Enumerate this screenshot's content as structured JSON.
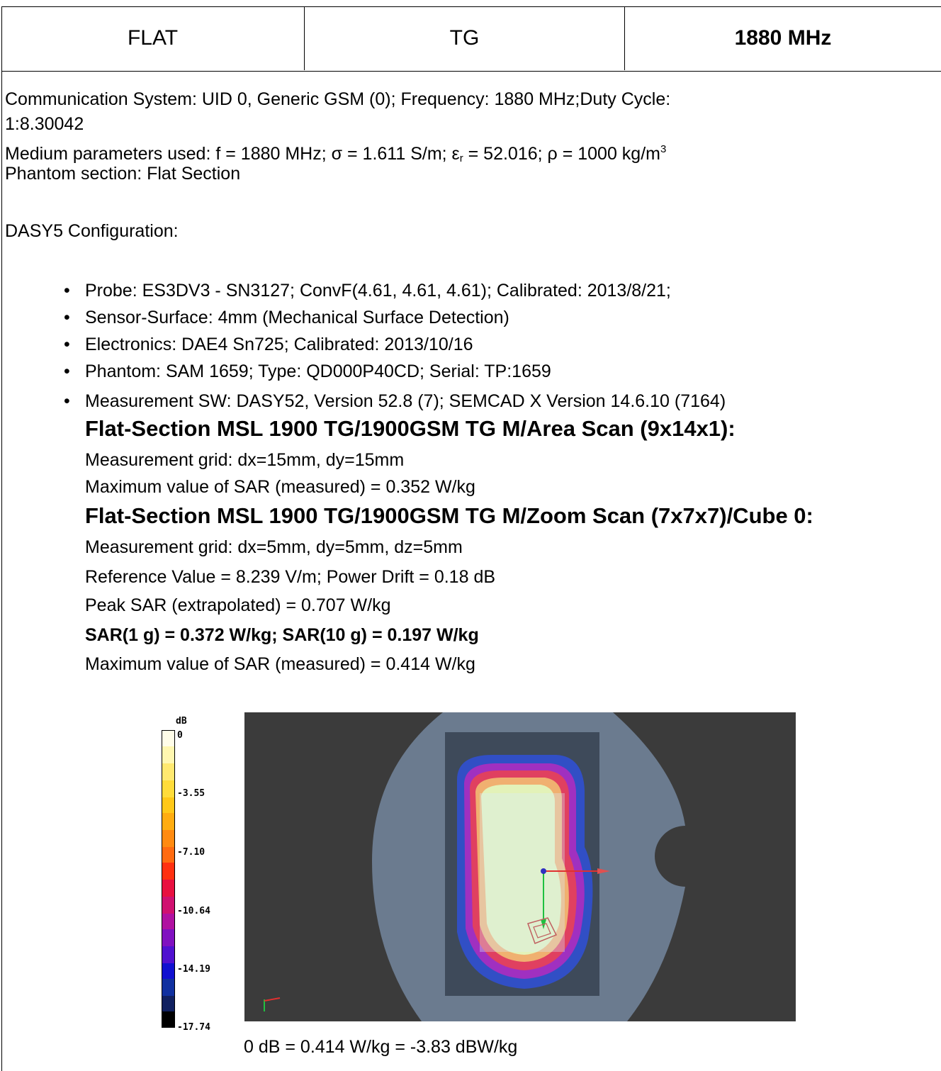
{
  "header": {
    "col1": "FLAT",
    "col2": "TG",
    "col3": "1880 MHz"
  },
  "info": {
    "comm_line1": "Communication System: UID 0, Generic GSM (0); Frequency: 1880 MHz;Duty Cycle:",
    "comm_line2": "1:8.30042",
    "medium_pre": "Medium parameters used: f = 1880 MHz; σ = 1.611 S/m; ε",
    "medium_sub": "r",
    "medium_mid": " = 52.016; ρ = 1000 kg/m",
    "medium_sup": "3",
    "phantom_section": "Phantom section: Flat Section",
    "dasy_config": "DASY5 Configuration:"
  },
  "bullets": [
    "Probe: ES3DV3 - SN3127; ConvF(4.61, 4.61, 4.61); Calibrated: 2013/8/21;",
    "Sensor-Surface: 4mm (Mechanical Surface Detection)",
    "Electronics: DAE4 Sn725; Calibrated: 2013/10/16",
    "Phantom: SAM 1659; Type: QD000P40CD; Serial: TP:1659",
    "Measurement SW: DASY52, Version 52.8 (7); SEMCAD X Version 14.6.10 (7164)"
  ],
  "area_scan": {
    "title": "Flat-Section MSL 1900 TG/1900GSM TG M/Area Scan (9x14x1):",
    "grid": "Measurement grid: dx=15mm, dy=15mm",
    "max": "Maximum value of SAR (measured) = 0.352 W/kg"
  },
  "zoom_scan": {
    "title": "Flat-Section MSL 1900 TG/1900GSM TG M/Zoom Scan (7x7x7)/Cube 0:",
    "grid": "Measurement grid: dx=5mm, dy=5mm, dz=5mm",
    "ref": "Reference Value = 8.239 V/m; Power Drift = 0.18 dB",
    "peak": "Peak SAR (extrapolated) = 0.707 W/kg",
    "sar": "SAR(1 g) = 0.372 W/kg; SAR(10 g) = 0.197 W/kg",
    "max": "Maximum value of SAR (measured) = 0.414 W/kg"
  },
  "colorbar": {
    "unit": "dB",
    "ticks": [
      "0",
      "-3.55",
      "-7.10",
      "-10.64",
      "-14.19",
      "-17.74"
    ]
  },
  "caption": "0 dB = 0.414 W/kg = -3.83 dBW/kg"
}
